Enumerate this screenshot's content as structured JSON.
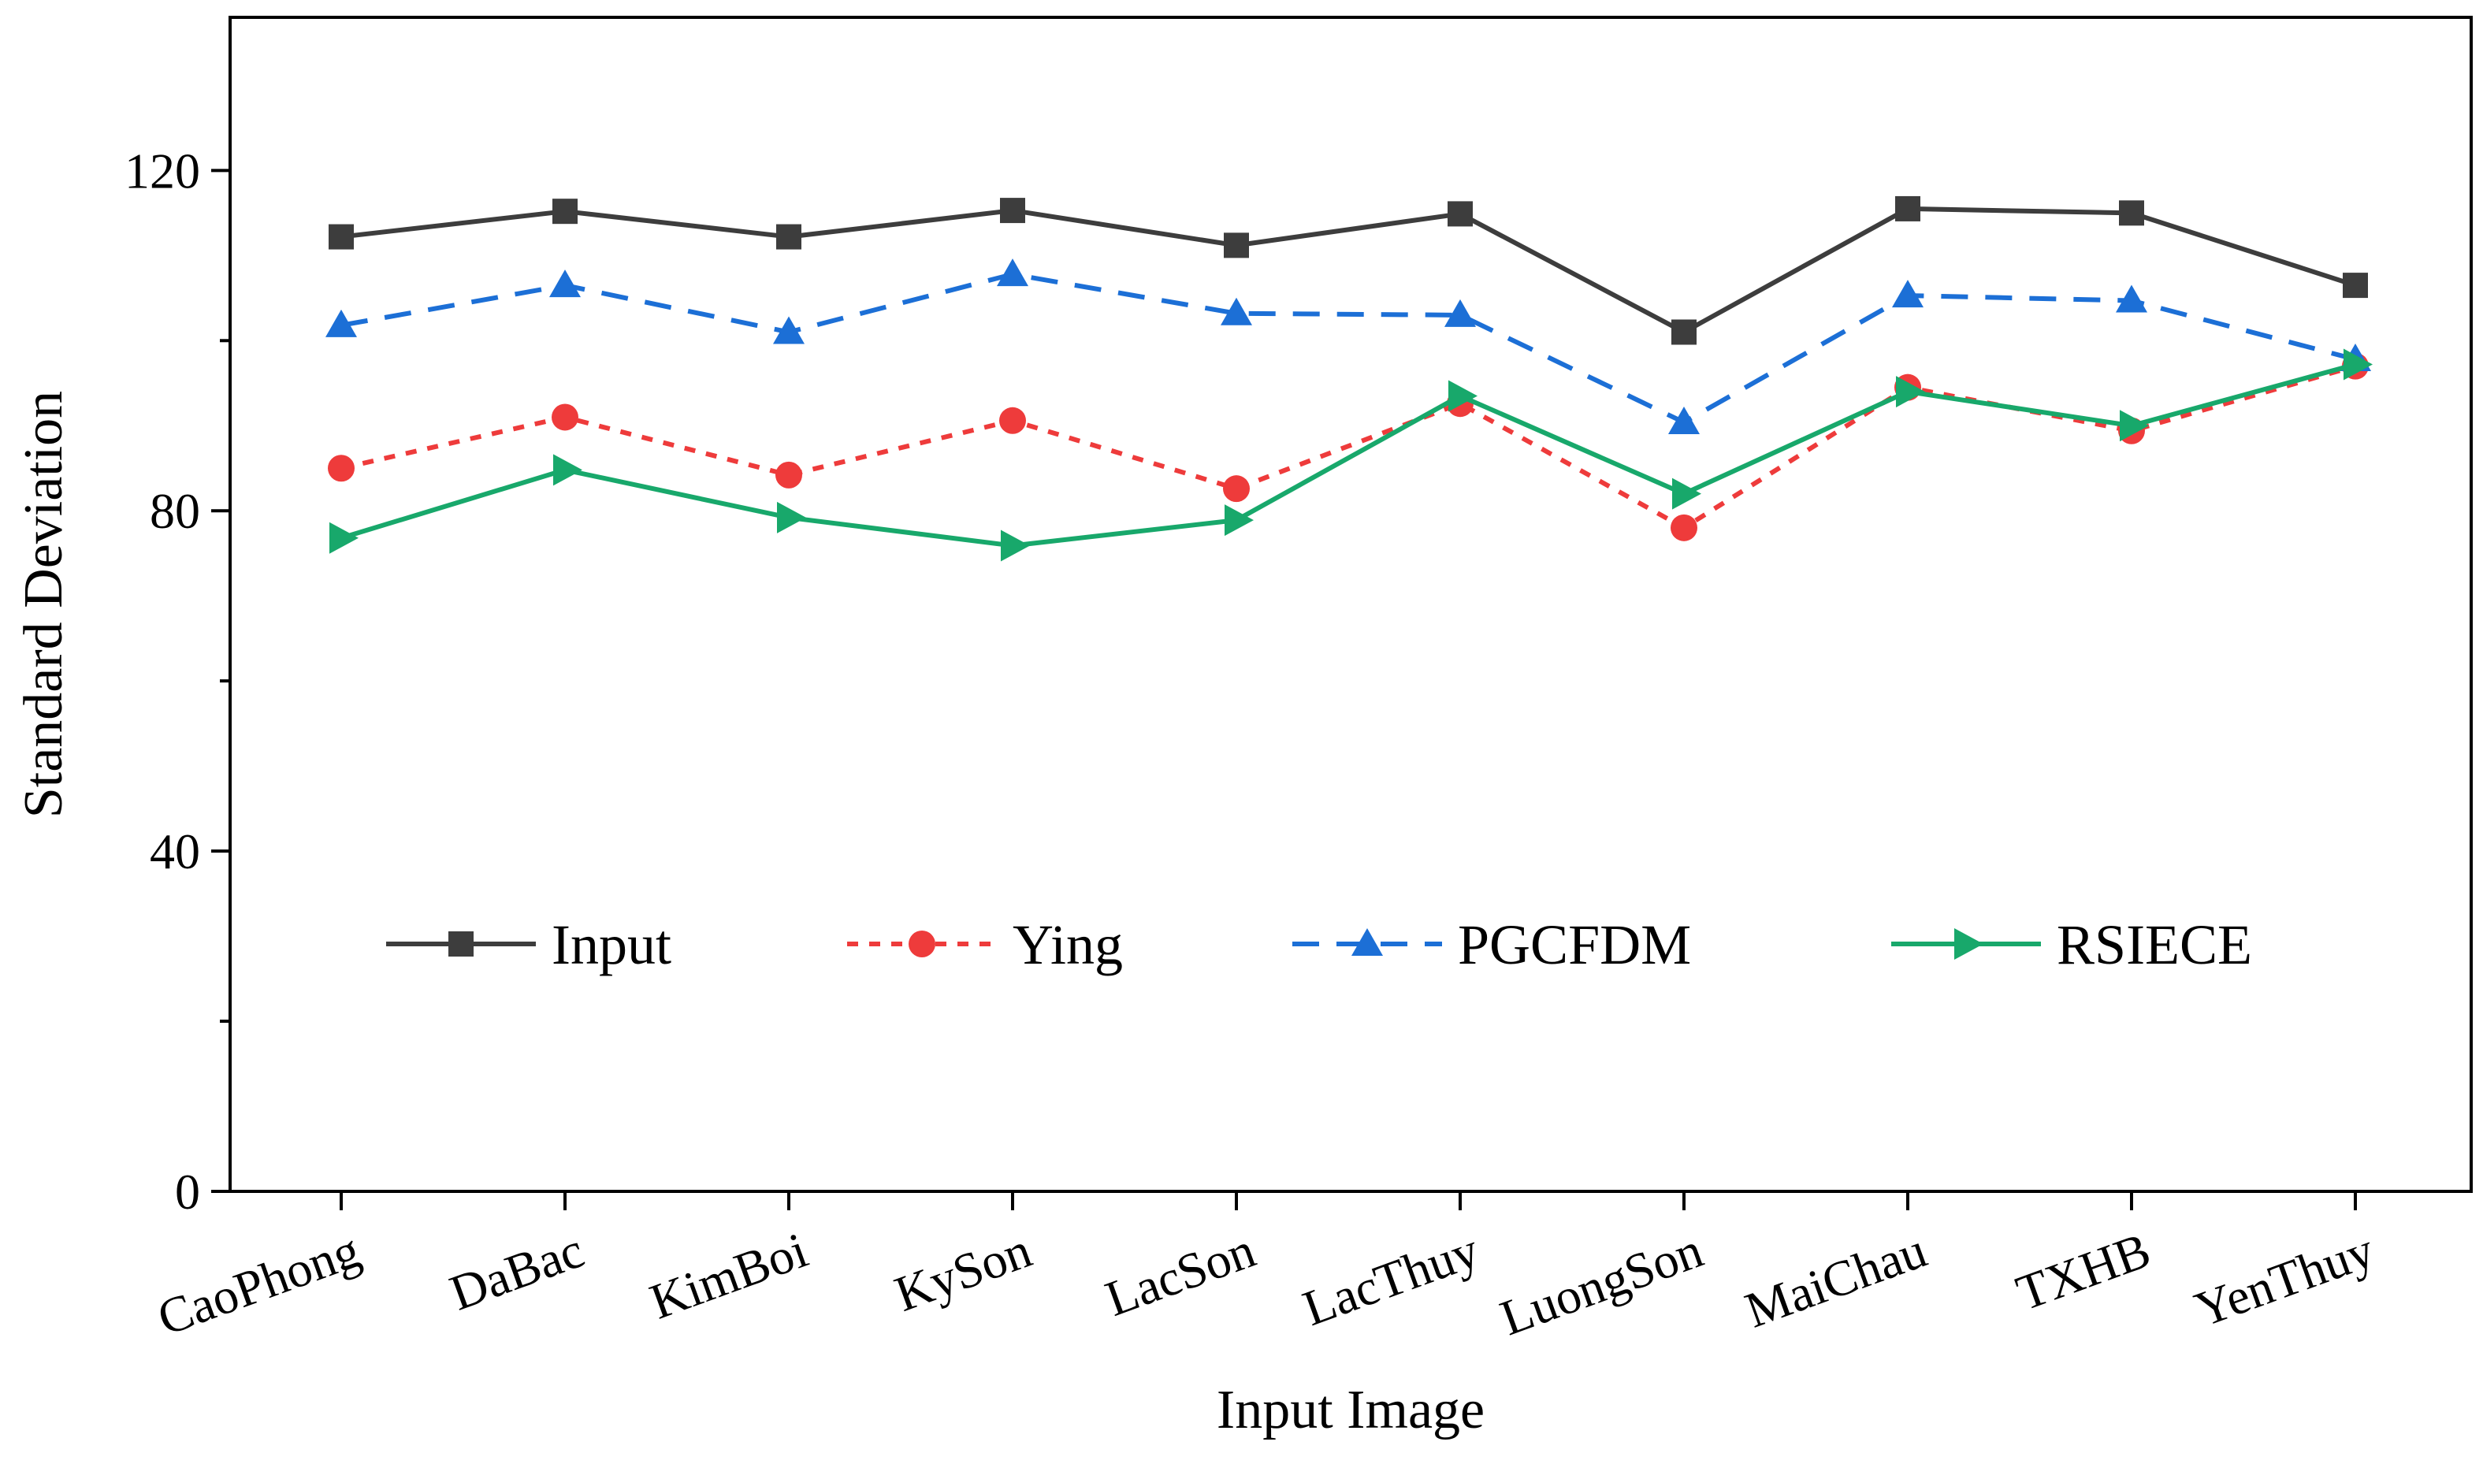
{
  "chart_data": {
    "type": "line",
    "title": "",
    "xlabel": "Input Image",
    "ylabel": "Standard Deviation",
    "categories": [
      "CaoPhong",
      "DaBac",
      "KimBoi",
      "KySon",
      "LacSon",
      "LacThuy",
      "LuongSon",
      "MaiChau",
      "TXHB",
      "YenThuy"
    ],
    "ylim": [
      0,
      138
    ],
    "yticks": [
      0,
      40,
      80,
      120
    ],
    "yticks_labels": [
      "0",
      "40",
      "80",
      "120"
    ],
    "y_minor_ticks": [
      20,
      60,
      100
    ],
    "grid": false,
    "legend_position": "lower-center inside plot, single row",
    "series": [
      {
        "name": "Input",
        "color": "#3d3d3d",
        "line_style": "solid",
        "marker": "square",
        "values": [
          112.2,
          115.2,
          112.2,
          115.3,
          111.2,
          114.9,
          101.0,
          115.5,
          115.0,
          106.5
        ]
      },
      {
        "name": "Ying",
        "color": "#ee3b3b",
        "line_style": "dotted",
        "marker": "circle",
        "values": [
          85.0,
          91.0,
          84.2,
          90.6,
          82.6,
          92.6,
          78.0,
          94.5,
          89.4,
          97.0
        ]
      },
      {
        "name": "PGCFDM",
        "color": "#1c6fd6",
        "line_style": "dashed",
        "marker": "triangle-up",
        "values": [
          101.8,
          106.5,
          101.0,
          107.8,
          103.2,
          103.0,
          90.4,
          105.3,
          104.7,
          97.8
        ]
      },
      {
        "name": "RSIECE",
        "color": "#18a86b",
        "line_style": "solid",
        "marker": "triangle-right",
        "values": [
          76.8,
          84.8,
          79.2,
          75.9,
          78.9,
          93.5,
          82.0,
          94.0,
          90.0,
          97.2
        ]
      }
    ]
  }
}
